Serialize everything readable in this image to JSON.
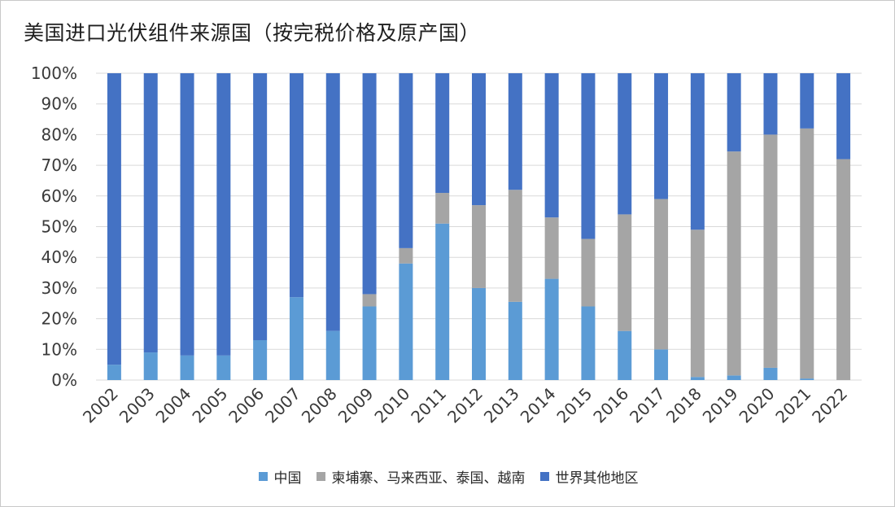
{
  "chart_data": {
    "type": "bar",
    "stacked": true,
    "title": "美国进口光伏组件来源国（按完税价格及原产国）",
    "xlabel": "",
    "ylabel": "",
    "ylim": [
      0,
      100
    ],
    "y_ticks": [
      "0%",
      "10%",
      "20%",
      "30%",
      "40%",
      "50%",
      "60%",
      "70%",
      "80%",
      "90%",
      "100%"
    ],
    "grid": true,
    "legend_position": "bottom",
    "categories": [
      "2002",
      "2003",
      "2004",
      "2005",
      "2006",
      "2007",
      "2008",
      "2009",
      "2010",
      "2011",
      "2012",
      "2013",
      "2014",
      "2015",
      "2016",
      "2017",
      "2018",
      "2019",
      "2020",
      "2021",
      "2022"
    ],
    "series": [
      {
        "name": "中国",
        "color": "#5b9bd5",
        "values": [
          5,
          9,
          8,
          8,
          13,
          27,
          16,
          24,
          38,
          51,
          30,
          25.5,
          33,
          24,
          16,
          10,
          1,
          1.5,
          4,
          0.5,
          0
        ]
      },
      {
        "name": "柬埔寨、马来西亚、泰国、越南",
        "color": "#a5a5a5",
        "values": [
          0,
          0,
          0,
          0,
          0,
          0,
          0,
          4,
          5,
          10,
          27,
          36.5,
          20,
          22,
          38,
          49,
          48,
          73,
          76,
          81.5,
          72
        ]
      },
      {
        "name": "世界其他地区",
        "color": "#4472c4",
        "values": [
          95,
          91,
          92,
          92,
          87,
          73,
          84,
          72,
          57,
          39,
          43,
          38,
          47,
          54,
          46,
          41,
          51,
          25.5,
          20,
          18,
          28
        ]
      }
    ]
  }
}
